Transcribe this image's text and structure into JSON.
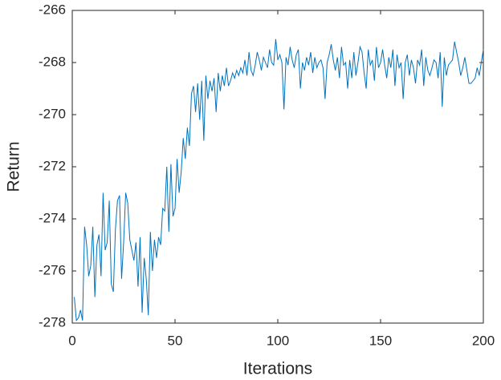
{
  "chart_data": {
    "type": "line",
    "x_label": "Iterations",
    "y_label": "Return",
    "x": [
      1,
      2,
      3,
      4,
      5,
      6,
      7,
      8,
      9,
      10,
      11,
      12,
      13,
      14,
      15,
      16,
      17,
      18,
      19,
      20,
      21,
      22,
      23,
      24,
      25,
      26,
      27,
      28,
      29,
      30,
      31,
      32,
      33,
      34,
      35,
      36,
      37,
      38,
      39,
      40,
      41,
      42,
      43,
      44,
      45,
      46,
      47,
      48,
      49,
      50,
      51,
      52,
      53,
      54,
      55,
      56,
      57,
      58,
      59,
      60,
      61,
      62,
      63,
      64,
      65,
      66,
      67,
      68,
      69,
      70,
      71,
      72,
      73,
      74,
      75,
      76,
      77,
      78,
      79,
      80,
      81,
      82,
      83,
      84,
      85,
      86,
      87,
      88,
      89,
      90,
      91,
      92,
      93,
      94,
      95,
      96,
      97,
      98,
      99,
      100,
      101,
      102,
      103,
      104,
      105,
      106,
      107,
      108,
      109,
      110,
      111,
      112,
      113,
      114,
      115,
      116,
      117,
      118,
      119,
      120,
      121,
      122,
      123,
      124,
      125,
      126,
      127,
      128,
      129,
      130,
      131,
      132,
      133,
      134,
      135,
      136,
      137,
      138,
      139,
      140,
      141,
      142,
      143,
      144,
      145,
      146,
      147,
      148,
      149,
      150,
      151,
      152,
      153,
      154,
      155,
      156,
      157,
      158,
      159,
      160,
      161,
      162,
      163,
      164,
      165,
      166,
      167,
      168,
      169,
      170,
      171,
      172,
      173,
      174,
      175,
      176,
      177,
      178,
      179,
      180,
      181,
      182,
      183,
      184,
      185,
      186,
      187,
      188,
      189,
      190,
      191,
      192,
      193,
      194,
      195,
      196,
      197,
      198,
      199,
      200
    ],
    "series": [
      {
        "color": "#0072BD",
        "values": [
          -277.0,
          -277.9,
          -277.8,
          -277.5,
          -277.9,
          -274.3,
          -275.0,
          -276.2,
          -275.8,
          -274.3,
          -277.0,
          -275.0,
          -274.6,
          -276.2,
          -273.0,
          -275.2,
          -274.9,
          -273.3,
          -276.5,
          -276.8,
          -274.4,
          -273.3,
          -273.1,
          -276.3,
          -274.9,
          -273.0,
          -273.4,
          -274.8,
          -275.2,
          -275.6,
          -274.9,
          -276.6,
          -274.7,
          -277.6,
          -275.5,
          -276.3,
          -277.7,
          -274.5,
          -276.0,
          -274.8,
          -275.5,
          -274.7,
          -275.0,
          -273.6,
          -273.7,
          -272.0,
          -274.5,
          -271.9,
          -273.9,
          -273.6,
          -271.7,
          -273.0,
          -272.2,
          -270.9,
          -271.7,
          -270.5,
          -271.2,
          -269.2,
          -268.9,
          -269.9,
          -268.8,
          -270.2,
          -268.7,
          -271.0,
          -268.5,
          -269.4,
          -268.7,
          -269.1,
          -268.6,
          -269.9,
          -268.4,
          -269.1,
          -268.5,
          -268.9,
          -268.2,
          -268.9,
          -268.7,
          -268.4,
          -268.6,
          -268.3,
          -268.5,
          -268.2,
          -268.4,
          -267.9,
          -268.5,
          -267.6,
          -268.3,
          -268.5,
          -268.1,
          -267.6,
          -267.9,
          -268.3,
          -267.8,
          -268.0,
          -268.2,
          -267.5,
          -268.0,
          -268.1,
          -267.1,
          -267.9,
          -267.7,
          -268.0,
          -269.8,
          -267.8,
          -268.1,
          -267.4,
          -267.9,
          -268.2,
          -267.7,
          -267.5,
          -269.0,
          -268.0,
          -268.3,
          -267.8,
          -268.1,
          -267.6,
          -268.4,
          -267.8,
          -268.2,
          -268.0,
          -267.9,
          -268.2,
          -269.4,
          -268.0,
          -267.7,
          -267.3,
          -267.9,
          -268.3,
          -267.8,
          -268.6,
          -267.4,
          -268.1,
          -268.0,
          -269.0,
          -267.9,
          -268.6,
          -267.6,
          -268.5,
          -268.0,
          -267.4,
          -267.6,
          -268.4,
          -269.0,
          -267.5,
          -268.1,
          -267.9,
          -268.7,
          -267.4,
          -268.2,
          -268.0,
          -267.5,
          -268.1,
          -268.6,
          -267.8,
          -268.2,
          -267.5,
          -268.9,
          -267.7,
          -268.2,
          -268.0,
          -269.4,
          -268.0,
          -267.7,
          -268.5,
          -267.9,
          -268.2,
          -268.8,
          -267.9,
          -268.1,
          -267.5,
          -268.9,
          -267.8,
          -268.3,
          -268.5,
          -268.2,
          -267.9,
          -268.0,
          -268.6,
          -267.6,
          -269.7,
          -267.8,
          -268.5,
          -268.1,
          -268.0,
          -267.9,
          -267.2,
          -267.6,
          -268.0,
          -268.5,
          -268.2,
          -267.8,
          -268.3,
          -268.8,
          -268.8,
          -268.7,
          -268.6,
          -268.2,
          -268.5,
          -268.0,
          -267.5
        ]
      }
    ],
    "xlim": [
      0,
      200
    ],
    "xticks": [
      0,
      50,
      100,
      150,
      200
    ],
    "ylim": [
      -278,
      -266
    ],
    "yticks": [
      -278,
      -276,
      -274,
      -272,
      -270,
      -268,
      -266
    ]
  }
}
